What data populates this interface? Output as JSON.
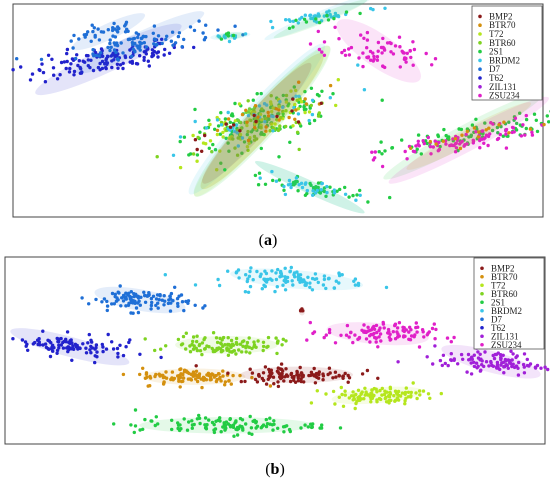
{
  "panels": [
    {
      "label": "a",
      "caption_open": "(",
      "caption_close": ")"
    },
    {
      "label": "b",
      "caption_open": "(",
      "caption_close": ")"
    }
  ],
  "legend": {
    "entries": [
      {
        "name": "BMP2",
        "color": "#8b1a1a"
      },
      {
        "name": "BTR70",
        "color": "#d4900e"
      },
      {
        "name": "T72",
        "color": "#b5e61d"
      },
      {
        "name": "BTR60",
        "color": "#7ed321"
      },
      {
        "name": "2S1",
        "color": "#22cc44"
      },
      {
        "name": "BRDM2",
        "color": "#39c5e8"
      },
      {
        "name": "D7",
        "color": "#1f6fd6"
      },
      {
        "name": "T62",
        "color": "#2222cc"
      },
      {
        "name": "ZIL131",
        "color": "#a020d8"
      },
      {
        "name": "ZSU234",
        "color": "#e020c8"
      }
    ]
  },
  "chart_data": [
    {
      "type": "scatter",
      "title": "",
      "panel": "a",
      "xlabel": "",
      "ylabel": "",
      "xlim": [
        0,
        100
      ],
      "ylim": [
        0,
        100
      ],
      "grid": false,
      "legend_placement": "top-right",
      "clusters": [
        {
          "series": "D7",
          "cx": 18,
          "cy": 87,
          "sx": 4,
          "sy": 2,
          "n": 35,
          "angle": 25
        },
        {
          "series": "T62",
          "cx": 18,
          "cy": 74,
          "sx": 8,
          "sy": 3,
          "n": 140,
          "angle": 25
        },
        {
          "series": "D7",
          "cx": 24,
          "cy": 82,
          "sx": 7,
          "sy": 2.5,
          "n": 80,
          "angle": 25
        },
        {
          "series": "2S1",
          "cx": 47,
          "cy": 45,
          "sx": 10,
          "sy": 4,
          "n": 140,
          "angle": 48
        },
        {
          "series": "T72",
          "cx": 47,
          "cy": 45,
          "sx": 10,
          "sy": 3.5,
          "n": 70,
          "angle": 48
        },
        {
          "series": "BTR60",
          "cx": 47,
          "cy": 45,
          "sx": 9,
          "sy": 3.5,
          "n": 60,
          "angle": 48
        },
        {
          "series": "BRDM2",
          "cx": 46,
          "cy": 46,
          "sx": 10,
          "sy": 3.5,
          "n": 40,
          "angle": 48
        },
        {
          "series": "BTR70",
          "cx": 47,
          "cy": 45,
          "sx": 9,
          "sy": 3.5,
          "n": 25,
          "angle": 48
        },
        {
          "series": "BMP2",
          "cx": 46,
          "cy": 44,
          "sx": 8,
          "sy": 3,
          "n": 15,
          "angle": 48
        },
        {
          "series": "BRDM2",
          "cx": 58,
          "cy": 94,
          "sx": 6,
          "sy": 1.4,
          "n": 40,
          "angle": 22
        },
        {
          "series": "2S1",
          "cx": 58,
          "cy": 93,
          "sx": 5,
          "sy": 1.2,
          "n": 12,
          "angle": 22
        },
        {
          "series": "BRDM2",
          "cx": 41,
          "cy": 85,
          "sx": 2,
          "sy": 0.9,
          "n": 12,
          "angle": 5
        },
        {
          "series": "2S1",
          "cx": 41,
          "cy": 85,
          "sx": 1.5,
          "sy": 0.8,
          "n": 5,
          "angle": 5
        },
        {
          "series": "ZSU234",
          "cx": 69,
          "cy": 78,
          "sx": 5,
          "sy": 4,
          "n": 70,
          "angle": -35
        },
        {
          "series": "2S1",
          "cx": 85,
          "cy": 38,
          "sx": 9,
          "sy": 2.5,
          "n": 90,
          "angle": 28
        },
        {
          "series": "ZSU234",
          "cx": 86,
          "cy": 36,
          "sx": 9,
          "sy": 2.5,
          "n": 90,
          "angle": 28
        },
        {
          "series": "BTR70",
          "cx": 86,
          "cy": 38,
          "sx": 7,
          "sy": 2,
          "n": 18,
          "angle": 28
        },
        {
          "series": "2S1",
          "cx": 56,
          "cy": 14,
          "sx": 6,
          "sy": 1.6,
          "n": 50,
          "angle": -25
        },
        {
          "series": "BRDM2",
          "cx": 56,
          "cy": 14,
          "sx": 6,
          "sy": 1.6,
          "n": 30,
          "angle": -25
        }
      ]
    },
    {
      "type": "scatter",
      "title": "",
      "panel": "b",
      "xlabel": "",
      "ylabel": "",
      "xlim": [
        0,
        100
      ],
      "ylim": [
        0,
        100
      ],
      "grid": false,
      "legend_placement": "top-right",
      "clusters": [
        {
          "series": "BRDM2",
          "cx": 54,
          "cy": 88,
          "sx": 6.5,
          "sy": 2.6,
          "n": 110,
          "angle": -5
        },
        {
          "series": "D7",
          "cx": 25,
          "cy": 77,
          "sx": 4.5,
          "sy": 3,
          "n": 110,
          "angle": -10
        },
        {
          "series": "T62",
          "cx": 12,
          "cy": 52,
          "sx": 6,
          "sy": 2.8,
          "n": 110,
          "angle": -15
        },
        {
          "series": "BTR60",
          "cx": 41,
          "cy": 53,
          "sx": 5,
          "sy": 2.5,
          "n": 110,
          "angle": 0
        },
        {
          "series": "BMP2",
          "cx": 55,
          "cy": 71,
          "sx": 0.3,
          "sy": 1.2,
          "n": 5,
          "angle": 0
        },
        {
          "series": "ZSU234",
          "cx": 69,
          "cy": 59,
          "sx": 5,
          "sy": 3,
          "n": 110,
          "angle": -5
        },
        {
          "series": "ZIL131",
          "cx": 90,
          "cy": 44,
          "sx": 5,
          "sy": 3,
          "n": 110,
          "angle": -15
        },
        {
          "series": "BTR70",
          "cx": 35,
          "cy": 36,
          "sx": 5,
          "sy": 2.3,
          "n": 110,
          "angle": 0
        },
        {
          "series": "BMP2",
          "cx": 54,
          "cy": 37,
          "sx": 5.5,
          "sy": 2.3,
          "n": 110,
          "angle": 0
        },
        {
          "series": "T72",
          "cx": 69,
          "cy": 26,
          "sx": 4.5,
          "sy": 2.2,
          "n": 110,
          "angle": 5
        },
        {
          "series": "2S1",
          "cx": 41,
          "cy": 10,
          "sx": 8.5,
          "sy": 2.3,
          "n": 120,
          "angle": 0
        }
      ]
    }
  ]
}
